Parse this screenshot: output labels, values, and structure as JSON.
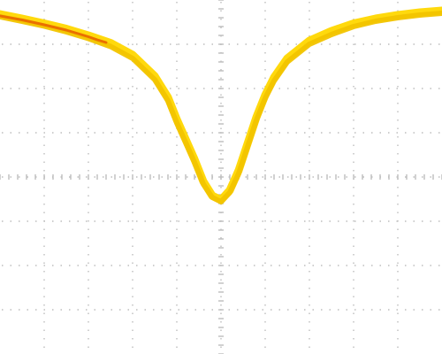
{
  "chart_data": {
    "type": "line",
    "title": "",
    "xlabel": "",
    "ylabel": "",
    "grid": true,
    "xlim": [
      0,
      10
    ],
    "ylim": [
      -4,
      4
    ],
    "x_divisions": 10,
    "y_divisions": 8,
    "colors": {
      "background": "#ffffff",
      "grid": "#bdbdbd",
      "trace": "#ffd700",
      "trace_shade": "#f2c400",
      "trace_highlight": "#e96a00"
    },
    "series": [
      {
        "x": [
          0,
          0.5,
          1,
          1.5,
          2,
          2.5,
          3,
          3.5,
          3.8,
          4.0,
          4.2,
          4.4,
          4.6,
          4.8,
          5.0,
          5.2,
          5.4,
          5.6,
          5.8,
          6.0,
          6.2,
          6.5,
          7,
          7.5,
          8,
          8.5,
          9,
          9.5,
          10
        ],
        "values": [
          3.68,
          3.58,
          3.47,
          3.35,
          3.2,
          3.03,
          2.76,
          2.28,
          1.8,
          1.3,
          0.85,
          0.4,
          -0.1,
          -0.42,
          -0.52,
          -0.3,
          0.15,
          0.75,
          1.35,
          1.85,
          2.25,
          2.68,
          3.08,
          3.3,
          3.47,
          3.58,
          3.66,
          3.72,
          3.76
        ]
      },
      {
        "x": [
          0,
          0.5,
          1,
          1.5,
          2,
          2.5,
          3,
          3.5,
          3.8,
          4.0,
          4.2,
          4.4,
          4.6,
          4.8,
          5.0,
          5.2,
          5.4,
          5.6,
          5.8,
          6.0,
          6.2,
          6.5,
          7,
          7.5,
          8,
          8.5,
          9,
          9.5,
          10
        ],
        "values": [
          3.62,
          3.52,
          3.41,
          3.28,
          3.13,
          2.95,
          2.68,
          2.2,
          1.72,
          1.22,
          0.78,
          0.33,
          -0.16,
          -0.46,
          -0.56,
          -0.35,
          0.08,
          0.68,
          1.28,
          1.78,
          2.17,
          2.6,
          3.0,
          3.22,
          3.4,
          3.52,
          3.6,
          3.66,
          3.7
        ]
      },
      {
        "x": [
          0,
          0.5,
          1,
          1.5,
          2,
          2.2,
          2.4
        ],
        "values": [
          3.64,
          3.55,
          3.44,
          3.32,
          3.17,
          3.1,
          3.04
        ]
      }
    ]
  }
}
